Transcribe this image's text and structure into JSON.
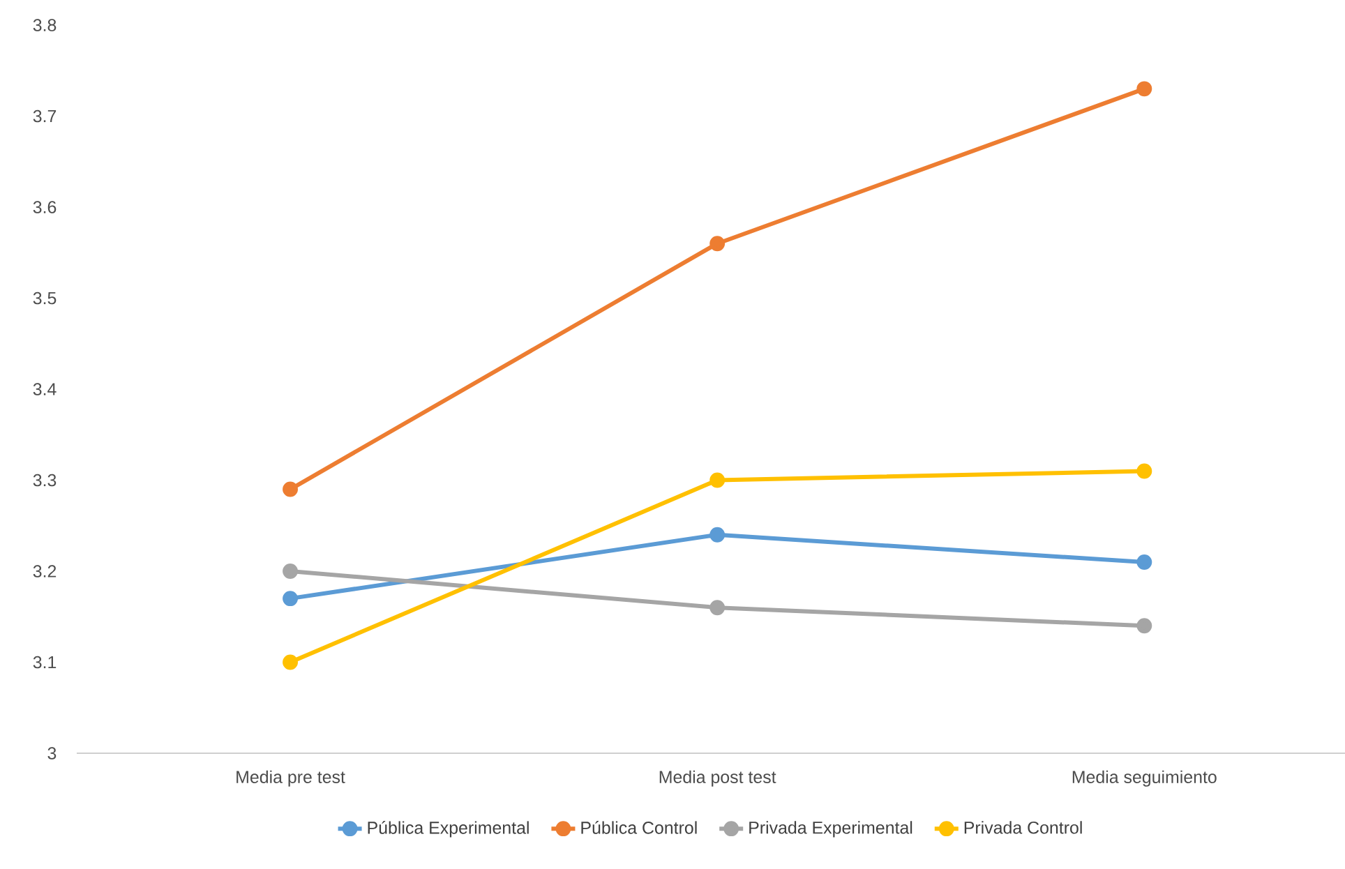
{
  "chart_data": {
    "type": "line",
    "categories": [
      "Media pre test",
      "Media post test",
      "Media seguimiento"
    ],
    "series": [
      {
        "name": "Pública Experimental",
        "color": "#5b9bd5",
        "values": [
          3.17,
          3.24,
          3.21
        ]
      },
      {
        "name": "Pública Control",
        "color": "#ed7d31",
        "values": [
          3.29,
          3.56,
          3.73
        ]
      },
      {
        "name": "Privada Experimental",
        "color": "#a5a5a5",
        "values": [
          3.2,
          3.16,
          3.14
        ]
      },
      {
        "name": "Privada Control",
        "color": "#ffc000",
        "values": [
          3.1,
          3.3,
          3.31
        ]
      }
    ],
    "ylim": [
      3,
      3.8
    ],
    "yticks": [
      3,
      3.1,
      3.2,
      3.3,
      3.4,
      3.5,
      3.6,
      3.7,
      3.8
    ],
    "grid": false,
    "legend": "bottom",
    "marker": "circle",
    "line_style": "solid"
  }
}
